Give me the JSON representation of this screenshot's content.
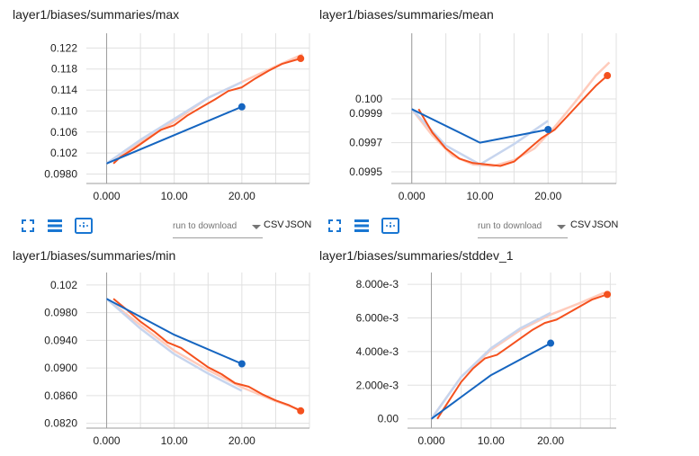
{
  "colors": {
    "orange": "#f4511e",
    "orange_light": "#ffcbbb",
    "blue": "#1565c0",
    "blue_light": "#c7d5ee",
    "axis": "#9e9e9e",
    "grid": "#e0e0e0",
    "icon_blue": "#1976d2"
  },
  "toolbar": {
    "fullscreen_icon": "expand-icon",
    "data_table_icon": "list-lines-icon",
    "fit_domain_icon": "fit-dashed-box-icon",
    "run_select_placeholder": "run to download",
    "csv_label": "CSV",
    "json_label": "JSON"
  },
  "chart_data": [
    {
      "title": "layer1/biases/summaries/max",
      "type": "line",
      "xlim": [
        -3,
        30
      ],
      "ylim": [
        0.0962,
        0.1248
      ],
      "yticks": [
        "0.122",
        "0.118",
        "0.114",
        "0.110",
        "0.106",
        "0.102",
        "0.0980"
      ],
      "ytick_values": [
        0.122,
        0.118,
        0.114,
        0.11,
        0.106,
        0.102,
        0.098
      ],
      "xticks": [
        "0.000",
        "10.00",
        "20.00"
      ],
      "xtick_values": [
        0,
        10,
        20
      ],
      "series": [
        {
          "style": "orange_light",
          "x": [
            0,
            5,
            10,
            15,
            20,
            25,
            29
          ],
          "values": [
            0.1,
            0.104,
            0.108,
            0.1125,
            0.1155,
            0.1185,
            0.1208
          ],
          "end_dot": false
        },
        {
          "style": "blue_light",
          "x": [
            0,
            5,
            10,
            15,
            20
          ],
          "values": [
            0.1,
            0.1045,
            0.1085,
            0.1125,
            0.1155
          ],
          "end_dot": false
        },
        {
          "style": "orange",
          "x": [
            1,
            2,
            4,
            6,
            8,
            10,
            12,
            14,
            16,
            18,
            20,
            22,
            24,
            26,
            28.7
          ],
          "values": [
            0.1,
            0.1012,
            0.1028,
            0.1046,
            0.1064,
            0.1073,
            0.1092,
            0.1107,
            0.1122,
            0.1138,
            0.1145,
            0.1162,
            0.1177,
            0.119,
            0.12
          ],
          "end_dot": true
        },
        {
          "style": "blue",
          "x": [
            0,
            20
          ],
          "values": [
            0.1,
            0.1108
          ],
          "end_dot": true
        }
      ]
    },
    {
      "title": "layer1/biases/summaries/mean",
      "type": "line",
      "xlim": [
        -3,
        30
      ],
      "ylim": [
        0.09942,
        0.10045
      ],
      "yticks": [
        "0.100",
        "0.0999",
        "0.0997",
        "0.0995"
      ],
      "ytick_values": [
        0.1,
        0.0999,
        0.0997,
        0.0995
      ],
      "xticks": [
        "0.000",
        "10.00",
        "20.00"
      ],
      "xtick_values": [
        0,
        10,
        20
      ],
      "series": [
        {
          "style": "orange_light",
          "x": [
            0,
            3,
            6,
            9,
            12,
            15,
            18,
            21,
            24,
            27,
            29
          ],
          "values": [
            0.09993,
            0.09975,
            0.09961,
            0.09955,
            0.09954,
            0.09958,
            0.09966,
            0.09981,
            0.09998,
            0.10016,
            0.10025
          ],
          "end_dot": false
        },
        {
          "style": "blue_light",
          "x": [
            0,
            5,
            10,
            15,
            20
          ],
          "values": [
            0.09993,
            0.09968,
            0.09955,
            0.09969,
            0.09985
          ],
          "end_dot": false
        },
        {
          "style": "orange",
          "x": [
            1,
            3,
            5,
            7,
            9,
            11,
            13,
            15,
            17,
            19,
            21,
            23,
            25,
            27,
            28.7
          ],
          "values": [
            0.09993,
            0.09977,
            0.09966,
            0.09959,
            0.09956,
            0.09955,
            0.09954,
            0.09957,
            0.09965,
            0.09973,
            0.09979,
            0.09989,
            0.09999,
            0.10009,
            0.10016
          ],
          "end_dot": true
        },
        {
          "style": "blue",
          "x": [
            0,
            10,
            20
          ],
          "values": [
            0.09993,
            0.0997,
            0.09979
          ],
          "end_dot": true
        }
      ]
    },
    {
      "title": "layer1/biases/summaries/min",
      "type": "line",
      "xlim": [
        -3,
        30
      ],
      "ylim": [
        0.0813,
        0.1038
      ],
      "yticks": [
        "0.102",
        "0.0980",
        "0.0940",
        "0.0900",
        "0.0860",
        "0.0820"
      ],
      "ytick_values": [
        0.102,
        0.098,
        0.094,
        0.09,
        0.086,
        0.082
      ],
      "xticks": [
        "0.000",
        "10.00",
        "20.00"
      ],
      "xtick_values": [
        0,
        10,
        20
      ],
      "series": [
        {
          "style": "orange_light",
          "x": [
            0,
            5,
            10,
            15,
            20,
            25,
            29
          ],
          "values": [
            0.1,
            0.0962,
            0.0925,
            0.0897,
            0.0872,
            0.0852,
            0.0838
          ],
          "end_dot": false
        },
        {
          "style": "blue_light",
          "x": [
            0,
            5,
            10,
            15,
            20
          ],
          "values": [
            0.1,
            0.0957,
            0.092,
            0.0892,
            0.0867
          ],
          "end_dot": false
        },
        {
          "style": "orange",
          "x": [
            1,
            3,
            5,
            7,
            9,
            11,
            13,
            15,
            17,
            19,
            21,
            23,
            25,
            27,
            28.7
          ],
          "values": [
            0.1,
            0.0984,
            0.0967,
            0.0953,
            0.0937,
            0.0929,
            0.0915,
            0.0901,
            0.0891,
            0.0878,
            0.0873,
            0.0862,
            0.0853,
            0.0846,
            0.0838
          ],
          "end_dot": true
        },
        {
          "style": "blue",
          "x": [
            0,
            10,
            20
          ],
          "values": [
            0.1,
            0.0948,
            0.0906
          ],
          "end_dot": true
        }
      ]
    },
    {
      "title": "layer1/biases/summaries/stddev_1",
      "type": "line",
      "xlim": [
        -4,
        31
      ],
      "ylim": [
        -0.00055,
        0.0087
      ],
      "yticks": [
        "8.000e-3",
        "6.000e-3",
        "4.000e-3",
        "2.000e-3",
        "0.00"
      ],
      "ytick_values": [
        0.008,
        0.006,
        0.004,
        0.002,
        0
      ],
      "xticks": [
        "0.000",
        "10.00",
        "20.00"
      ],
      "xtick_values": [
        0,
        10,
        20
      ],
      "series": [
        {
          "style": "orange_light",
          "x": [
            0,
            5,
            10,
            15,
            20,
            25,
            29
          ],
          "values": [
            0,
            0.0025,
            0.0041,
            0.0053,
            0.0062,
            0.0069,
            0.0075
          ],
          "end_dot": false
        },
        {
          "style": "blue_light",
          "x": [
            0,
            5,
            10,
            15,
            20
          ],
          "values": [
            0,
            0.0025,
            0.0042,
            0.0054,
            0.0063
          ],
          "end_dot": false
        },
        {
          "style": "orange",
          "x": [
            1,
            3,
            5,
            7,
            9,
            11,
            13,
            15,
            17,
            19,
            21,
            23,
            25,
            27,
            29.5
          ],
          "values": [
            0,
            0.0011,
            0.0022,
            0.003,
            0.0036,
            0.0038,
            0.0043,
            0.0048,
            0.0053,
            0.0057,
            0.0059,
            0.0063,
            0.0067,
            0.0071,
            0.0074
          ],
          "end_dot": true
        },
        {
          "style": "blue",
          "x": [
            0,
            10,
            20
          ],
          "values": [
            0,
            0.0026,
            0.0045
          ],
          "end_dot": true
        }
      ]
    }
  ]
}
